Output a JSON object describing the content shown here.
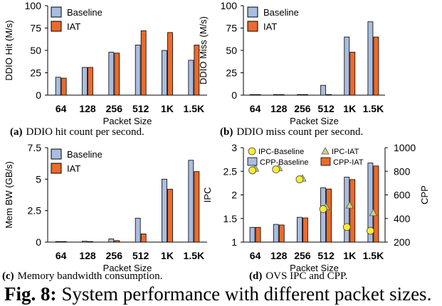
{
  "colors": {
    "baseline": "#a9bde0",
    "iat": "#ec6a2c",
    "ipc_baseline": "#f6ec3a",
    "ipc_iat": "#cfd57a"
  },
  "figure_caption": {
    "label": "Fig. 8:",
    "text": "System performance with different packet sizes."
  },
  "chart_data": [
    {
      "id": "a",
      "type": "bar",
      "caption_label": "(a)",
      "caption_text": "DDIO hit count per second.",
      "categories": [
        "64",
        "128",
        "256",
        "512",
        "1K",
        "1.5K"
      ],
      "xlabel": "Packet Size",
      "ylabel": "DDIO Hit (M/s)",
      "ylim": [
        0,
        100
      ],
      "yticks": [
        "0",
        "25",
        "50",
        "75",
        "100"
      ],
      "series": [
        {
          "name": "Baseline",
          "values": [
            20,
            31,
            48,
            56,
            50,
            39
          ]
        },
        {
          "name": "IAT",
          "values": [
            19,
            31,
            47,
            72,
            70,
            56
          ]
        }
      ],
      "legend": "top-left"
    },
    {
      "id": "b",
      "type": "bar",
      "caption_label": "(b)",
      "caption_text": "DDIO miss count per second.",
      "categories": [
        "64",
        "128",
        "256",
        "512",
        "1K",
        "1.5K"
      ],
      "xlabel": "Packet Size",
      "ylabel": "DDIO Miss (M/s)",
      "ylim": [
        0,
        100
      ],
      "yticks": [
        "0",
        "25",
        "50",
        "75",
        "100"
      ],
      "series": [
        {
          "name": "Baseline",
          "values": [
            0,
            0,
            0,
            11,
            65,
            82
          ]
        },
        {
          "name": "IAT",
          "values": [
            0,
            0,
            0,
            0,
            48,
            65
          ]
        }
      ],
      "legend": "top-left"
    },
    {
      "id": "c",
      "type": "bar",
      "caption_label": "(c)",
      "caption_text": "Memory bandwidth consumption.",
      "categories": [
        "64",
        "128",
        "256",
        "512",
        "1K",
        "1.5K"
      ],
      "xlabel": "Packet Size",
      "ylabel": "Mem BW (GB/s)",
      "ylim": [
        0,
        7.5
      ],
      "yticks": [
        "0",
        "2.5",
        "5",
        "7.5"
      ],
      "series": [
        {
          "name": "Baseline",
          "values": [
            0,
            0.02,
            0.25,
            1.9,
            5.0,
            6.5
          ]
        },
        {
          "name": "IAT",
          "values": [
            0,
            0,
            0.12,
            0.65,
            4.2,
            5.6
          ]
        }
      ],
      "legend": "top-left"
    },
    {
      "id": "d",
      "type": "bar",
      "caption_label": "(d)",
      "caption_text": "OVS IPC and CPP.",
      "categories": [
        "64",
        "128",
        "256",
        "512",
        "1K",
        "1.5K"
      ],
      "xlabel": "Packet Size",
      "ylabel": "IPC",
      "ylabel_right": "CPP",
      "ylim": [
        1,
        3
      ],
      "yticks": [
        "1",
        "1.5",
        "2",
        "2.5",
        "3"
      ],
      "ylim_right": [
        200,
        1000
      ],
      "yticks_right": [
        "200",
        "400",
        "600",
        "800",
        "1000"
      ],
      "series": [
        {
          "name": "CPP-Baseline",
          "axis": "right",
          "kind": "bar",
          "values": [
            325,
            350,
            410,
            660,
            750,
            870
          ]
        },
        {
          "name": "CPP-IAT",
          "axis": "right",
          "kind": "bar",
          "values": [
            325,
            345,
            405,
            650,
            730,
            845
          ]
        },
        {
          "name": "IPC-Baseline",
          "axis": "left",
          "kind": "point",
          "values": [
            2.52,
            2.54,
            2.33,
            1.7,
            1.32,
            1.24
          ]
        },
        {
          "name": "IPC-IAT",
          "axis": "left",
          "kind": "point",
          "values": [
            2.56,
            2.57,
            2.35,
            1.75,
            1.78,
            1.62
          ]
        }
      ],
      "legend": "top"
    }
  ]
}
